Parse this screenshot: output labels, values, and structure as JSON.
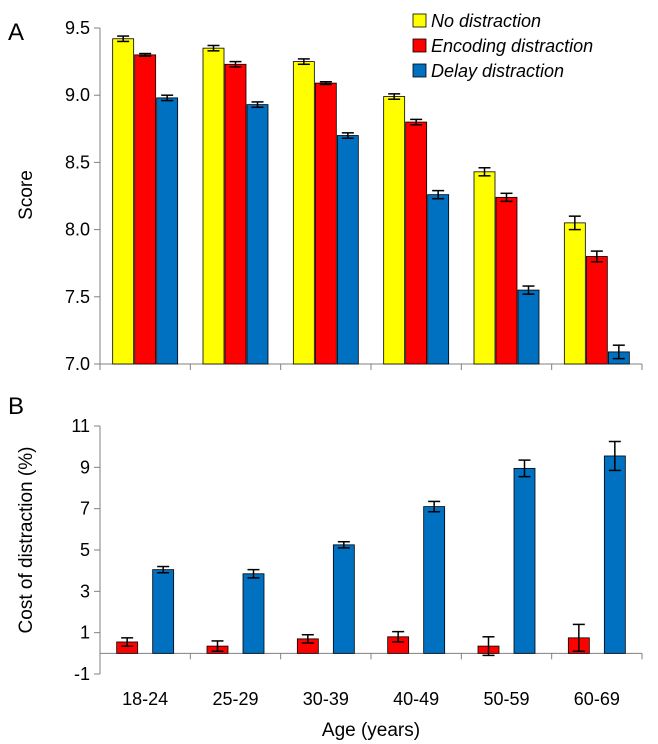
{
  "chart_data": [
    {
      "panel": "A",
      "type": "bar",
      "categories": [
        "18-24",
        "25-29",
        "30-39",
        "40-49",
        "50-59",
        "60-69"
      ],
      "ylabel": "Score",
      "xlabel": "",
      "ylim": [
        7.0,
        9.5
      ],
      "yticks": [
        "7.0",
        "7.5",
        "8.0",
        "8.5",
        "9.0",
        "9.5"
      ],
      "legend": {
        "position": "top-right"
      },
      "series": [
        {
          "name": "No distraction",
          "color": "#ffff00",
          "values": [
            9.42,
            9.35,
            9.25,
            8.99,
            8.43,
            8.05
          ],
          "errors": [
            0.02,
            0.02,
            0.02,
            0.02,
            0.03,
            0.05
          ]
        },
        {
          "name": "Encoding distraction",
          "color": "#ff0000",
          "values": [
            9.3,
            9.23,
            9.09,
            8.8,
            8.24,
            7.8
          ],
          "errors": [
            0.01,
            0.02,
            0.01,
            0.02,
            0.03,
            0.04
          ]
        },
        {
          "name": "Delay distraction",
          "color": "#0070c0",
          "values": [
            8.98,
            8.93,
            8.7,
            8.26,
            7.55,
            7.09
          ],
          "errors": [
            0.02,
            0.02,
            0.02,
            0.03,
            0.03,
            0.05
          ]
        }
      ]
    },
    {
      "panel": "B",
      "type": "bar",
      "categories": [
        "18-24",
        "25-29",
        "30-39",
        "40-49",
        "50-59",
        "60-69"
      ],
      "xlabel": "Age (years)",
      "ylabel": "Cost of distraction (%)",
      "ylim": [
        -1,
        11
      ],
      "yticks": [
        "-1",
        "1",
        "3",
        "5",
        "7",
        "9",
        "11"
      ],
      "series": [
        {
          "color": "#ff0000",
          "values": [
            0.55,
            0.35,
            0.7,
            0.8,
            0.35,
            0.75
          ],
          "errors": [
            0.2,
            0.25,
            0.2,
            0.25,
            0.45,
            0.65
          ]
        },
        {
          "color": "#0070c0",
          "values": [
            4.05,
            3.85,
            5.25,
            7.1,
            8.95,
            9.55
          ],
          "errors": [
            0.15,
            0.2,
            0.15,
            0.25,
            0.4,
            0.7
          ]
        }
      ]
    }
  ]
}
